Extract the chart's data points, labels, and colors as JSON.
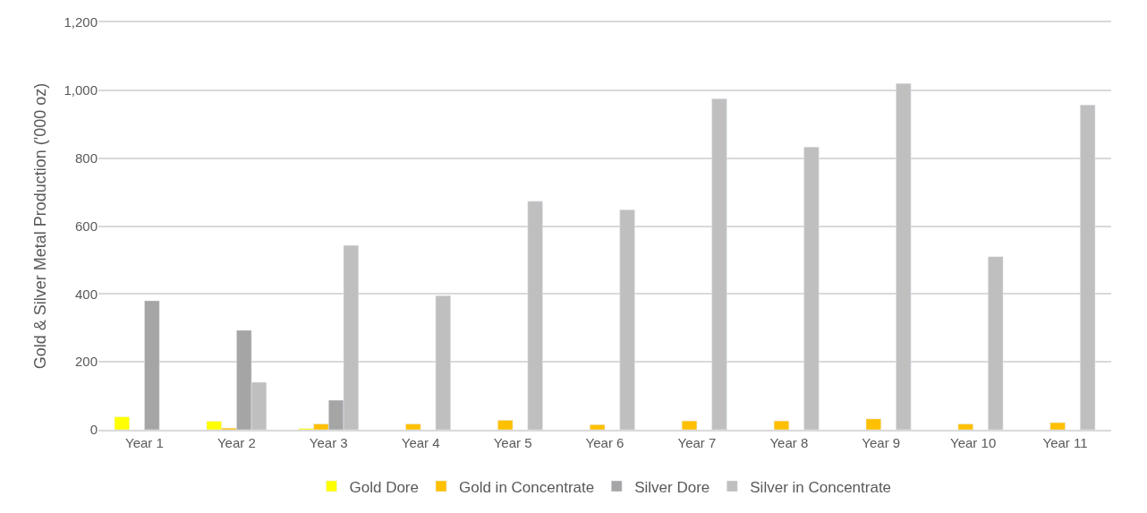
{
  "chart_data": {
    "type": "bar",
    "ylabel": "Gold & Silver Metal Production ('000 oz)",
    "categories": [
      "Year 1",
      "Year 2",
      "Year 3",
      "Year 4",
      "Year 5",
      "Year 6",
      "Year 7",
      "Year 8",
      "Year 9",
      "Year 10",
      "Year 11"
    ],
    "series": [
      {
        "name": "Gold Dore",
        "color": "#ffff00",
        "values": [
          38,
          25,
          4,
          null,
          null,
          null,
          null,
          null,
          null,
          null,
          null
        ]
      },
      {
        "name": "Gold in Concentrate",
        "color": "#ffc000",
        "values": [
          null,
          5,
          17,
          17,
          28,
          15,
          26,
          26,
          32,
          17,
          21
        ]
      },
      {
        "name": "Silver Dore",
        "color": "#a5a5a5",
        "values": [
          380,
          293,
          87,
          null,
          null,
          null,
          null,
          null,
          null,
          null,
          null
        ]
      },
      {
        "name": "Silver in Concentrate",
        "color": "#bfbfbf",
        "values": [
          null,
          140,
          543,
          395,
          673,
          648,
          975,
          833,
          1020,
          510,
          957
        ]
      }
    ],
    "ylim": [
      0,
      1200
    ],
    "yticks": [
      {
        "value": 0,
        "label": "0"
      },
      {
        "value": 200,
        "label": "200"
      },
      {
        "value": 400,
        "label": "400"
      },
      {
        "value": 600,
        "label": "600"
      },
      {
        "value": 800,
        "label": "800"
      },
      {
        "value": 1000,
        "label": "1,000"
      },
      {
        "value": 1200,
        "label": "1,200"
      }
    ],
    "grid": "y",
    "legend": "bottom"
  }
}
